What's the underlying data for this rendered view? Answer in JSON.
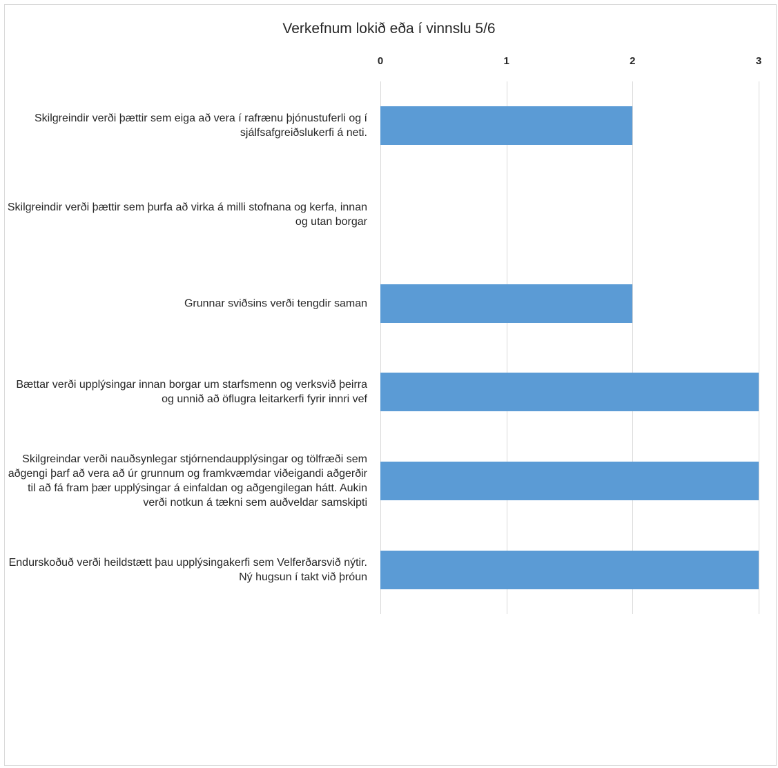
{
  "chart_data": {
    "type": "bar",
    "orientation": "horizontal",
    "title": "Verkefnum lokið eða í vinnslu 5/6",
    "xlabel": "",
    "ylabel": "",
    "xlim": [
      0,
      3
    ],
    "x_ticks": [
      "0",
      "1",
      "2",
      "3"
    ],
    "x_axis_position": "top",
    "grid": true,
    "legend": "none",
    "bar_color": "#5b9bd5",
    "categories": [
      "Skilgreindir verði þættir sem eiga að vera í rafrænu þjónustuferli og í sjálfsafgreiðslukerfi á neti.",
      "Skilgreindir verði þættir sem þurfa að virka á milli stofnana og kerfa, innan og utan borgar",
      "Grunnar sviðsins verði tengdir saman",
      "Bættar verði upplýsingar innan borgar um starfsmenn og verksvið þeirra og unnið að öflugra leitarkerfi fyrir innri vef",
      "Skilgreindar verði nauðsynlegar stjórnendaupplýsingar og tölfræði sem aðgengi þarf að vera að úr grunnum og framkvæmdar viðeigandi aðgerðir til að fá fram þær upplýsingar á einfaldan og aðgengilegan hátt. Aukin verði notkun á tækni sem auðveldar samskipti",
      "Endurskoðuð verði heildstætt þau upplýsingakerfi sem Velferðarsvið nýtir. Ný hugsun í takt við þróun"
    ],
    "values": [
      2,
      0,
      2,
      3,
      3,
      3
    ]
  }
}
